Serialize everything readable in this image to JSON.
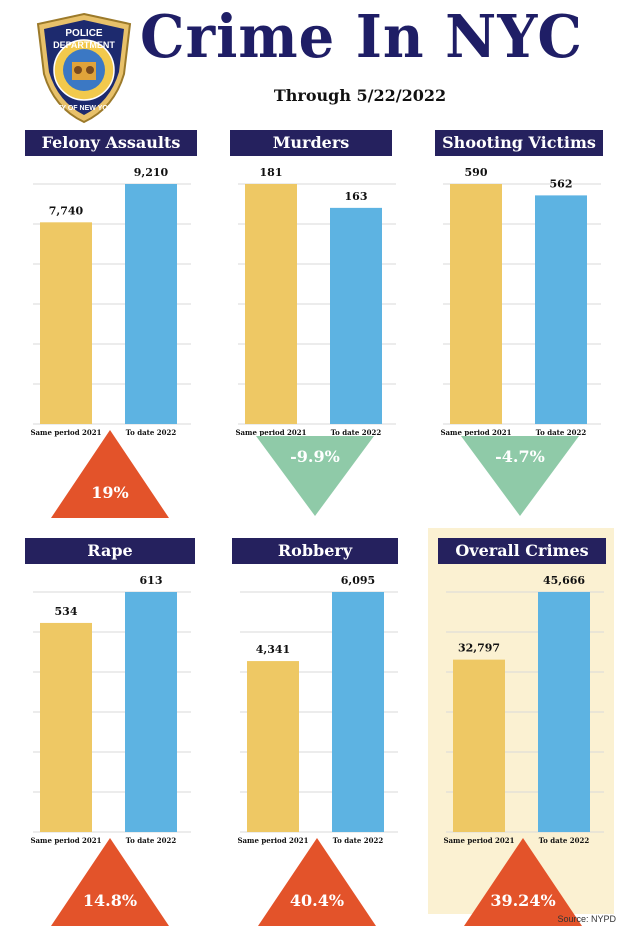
{
  "header": {
    "title": "Crime In NYC",
    "subtitle": "Through 5/22/2022",
    "logo": {
      "text_top": "POLICE",
      "text_mid": "DEPARTMENT",
      "text_ring": "CITY OF NEW YORK"
    }
  },
  "source": "Source: NYPD",
  "colors": {
    "bar_2021": "#eec864",
    "bar_2022": "#5db3e2",
    "header_bg": "#25215e",
    "increase": "#e3532a",
    "decrease": "#8fcaa8",
    "highlight_bg": "#fbf1d2"
  },
  "chart_data": [
    {
      "type": "bar",
      "title": "Felony Assaults",
      "categories": [
        "Same period 2021",
        "To date 2022"
      ],
      "values": [
        7740,
        9210
      ],
      "value_labels": [
        "7,740",
        "9,210"
      ],
      "change": "19%",
      "direction": "up"
    },
    {
      "type": "bar",
      "title": "Murders",
      "categories": [
        "Same period 2021",
        "To date 2022"
      ],
      "values": [
        181,
        163
      ],
      "value_labels": [
        "181",
        "163"
      ],
      "change": "-9.9%",
      "direction": "down"
    },
    {
      "type": "bar",
      "title": "Shooting Victims",
      "categories": [
        "Same period 2021",
        "To date 2022"
      ],
      "values": [
        590,
        562
      ],
      "value_labels": [
        "590",
        "562"
      ],
      "change": "-4.7%",
      "direction": "down"
    },
    {
      "type": "bar",
      "title": "Rape",
      "categories": [
        "Same period 2021",
        "To date 2022"
      ],
      "values": [
        534,
        613
      ],
      "value_labels": [
        "534",
        "613"
      ],
      "change": "14.8%",
      "direction": "up"
    },
    {
      "type": "bar",
      "title": "Robbery",
      "categories": [
        "Same period 2021",
        "To date 2022"
      ],
      "values": [
        4341,
        6095
      ],
      "value_labels": [
        "4,341",
        "6,095"
      ],
      "change": "40.4%",
      "direction": "up"
    },
    {
      "type": "bar",
      "title": "Overall Crimes",
      "categories": [
        "Same period 2021",
        "To date 2022"
      ],
      "values": [
        32797,
        45666
      ],
      "value_labels": [
        "32,797",
        "45,666"
      ],
      "change": "39.24%",
      "direction": "up"
    }
  ]
}
